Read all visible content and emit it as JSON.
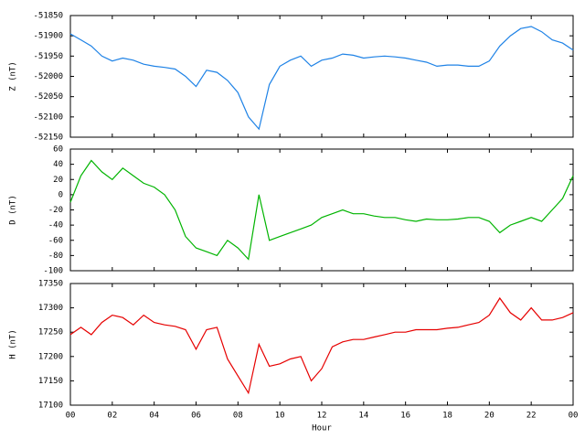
{
  "chart_data": [
    {
      "type": "line",
      "ylabel": "Z (nT)",
      "xlim": [
        0,
        24
      ],
      "ylim": [
        -52150,
        -51850
      ],
      "yticks": [
        -52150,
        -52100,
        -52050,
        -52000,
        -51950,
        -51900,
        -51850
      ],
      "x": [
        0,
        0.5,
        1,
        1.5,
        2,
        2.5,
        3,
        3.5,
        4,
        4.5,
        5,
        5.5,
        6,
        6.5,
        7,
        7.5,
        8,
        8.5,
        9,
        9.5,
        10,
        10.5,
        11,
        11.5,
        12,
        12.5,
        13,
        13.5,
        14,
        14.5,
        15,
        15.5,
        16,
        16.5,
        17,
        17.5,
        18,
        18.5,
        19,
        19.5,
        20,
        20.5,
        21,
        21.5,
        22,
        22.5,
        23,
        23.5,
        24
      ],
      "series": [
        {
          "name": "Z",
          "color": "#1e82e6",
          "values": [
            -51895,
            -51910,
            -51925,
            -51950,
            -51962,
            -51955,
            -51960,
            -51970,
            -51975,
            -51978,
            -51982,
            -52000,
            -52025,
            -51985,
            -51990,
            -52010,
            -52040,
            -52100,
            -52130,
            -52020,
            -51975,
            -51960,
            -51950,
            -51975,
            -51960,
            -51955,
            -51945,
            -51948,
            -51955,
            -51952,
            -51950,
            -51952,
            -51955,
            -51960,
            -51965,
            -51975,
            -51972,
            -51972,
            -51975,
            -51975,
            -51962,
            -51925,
            -51900,
            -51882,
            -51877,
            -51890,
            -51910,
            -51918,
            -51935
          ]
        }
      ]
    },
    {
      "type": "line",
      "ylabel": "D (nT)",
      "xlim": [
        0,
        24
      ],
      "ylim": [
        -100,
        60
      ],
      "yticks": [
        -100,
        -80,
        -60,
        -40,
        -20,
        0,
        20,
        40,
        60
      ],
      "x": [
        0,
        0.5,
        1,
        1.5,
        2,
        2.5,
        3,
        3.5,
        4,
        4.5,
        5,
        5.5,
        6,
        6.5,
        7,
        7.5,
        8,
        8.5,
        9,
        9.5,
        10,
        10.5,
        11,
        11.5,
        12,
        12.5,
        13,
        13.5,
        14,
        14.5,
        15,
        15.5,
        16,
        16.5,
        17,
        17.5,
        18,
        18.5,
        19,
        19.5,
        20,
        20.5,
        21,
        21.5,
        22,
        22.5,
        23,
        23.5,
        24
      ],
      "series": [
        {
          "name": "D",
          "color": "#00b400",
          "values": [
            -10,
            25,
            45,
            30,
            20,
            35,
            25,
            15,
            10,
            0,
            -20,
            -55,
            -70,
            -75,
            -80,
            -60,
            -70,
            -85,
            0,
            -60,
            -55,
            -50,
            -45,
            -40,
            -30,
            -25,
            -20,
            -25,
            -25,
            -28,
            -30,
            -30,
            -33,
            -35,
            -32,
            -33,
            -33,
            -32,
            -30,
            -30,
            -35,
            -50,
            -40,
            -35,
            -30,
            -35,
            -20,
            -5,
            25
          ]
        }
      ]
    },
    {
      "type": "line",
      "ylabel": "H (nT)",
      "xlabel": "Hour",
      "xlim": [
        0,
        24
      ],
      "ylim": [
        17100,
        17350
      ],
      "yticks": [
        17100,
        17150,
        17200,
        17250,
        17300,
        17350
      ],
      "xticks": [
        {
          "value": 0,
          "label": "00"
        },
        {
          "value": 2,
          "label": "02"
        },
        {
          "value": 4,
          "label": "04"
        },
        {
          "value": 6,
          "label": "06"
        },
        {
          "value": 8,
          "label": "08"
        },
        10,
        12,
        14,
        16,
        18,
        20,
        22,
        {
          "value": 24,
          "label": "00"
        }
      ],
      "x": [
        0,
        0.5,
        1,
        1.5,
        2,
        2.5,
        3,
        3.5,
        4,
        4.5,
        5,
        5.5,
        6,
        6.5,
        7,
        7.5,
        8,
        8.5,
        9,
        9.5,
        10,
        10.5,
        11,
        11.5,
        12,
        12.5,
        13,
        13.5,
        14,
        14.5,
        15,
        15.5,
        16,
        16.5,
        17,
        17.5,
        18,
        18.5,
        19,
        19.5,
        20,
        20.5,
        21,
        21.5,
        22,
        22.5,
        23,
        23.5,
        24
      ],
      "series": [
        {
          "name": "H",
          "color": "#e60000",
          "values": [
            17245,
            17260,
            17245,
            17270,
            17285,
            17280,
            17265,
            17285,
            17270,
            17265,
            17262,
            17255,
            17215,
            17255,
            17260,
            17195,
            17160,
            17125,
            17225,
            17180,
            17185,
            17195,
            17200,
            17150,
            17175,
            17220,
            17230,
            17235,
            17235,
            17240,
            17245,
            17250,
            17250,
            17255,
            17255,
            17255,
            17258,
            17260,
            17265,
            17270,
            17285,
            17320,
            17290,
            17275,
            17300,
            17275,
            17275,
            17280,
            17290
          ]
        }
      ]
    }
  ]
}
